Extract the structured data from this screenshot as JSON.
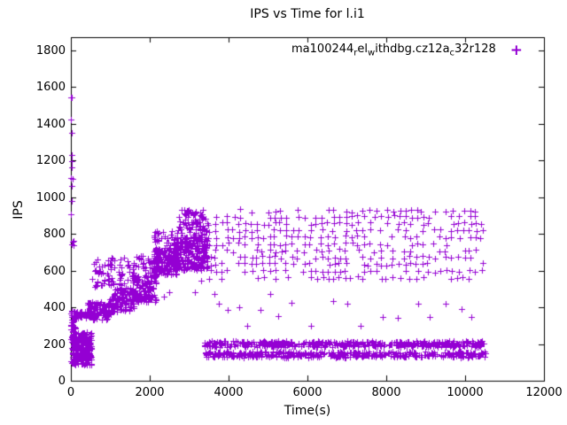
{
  "title": "IPS vs Time for l.i1",
  "legend": {
    "marker": "+",
    "label_plain": "ma100244_rel_withdbg.cz12a_c32r128",
    "segments": [
      {
        "text": "ma100244",
        "sub": false
      },
      {
        "text": "r",
        "sub": true
      },
      {
        "text": "el",
        "sub": false
      },
      {
        "text": "w",
        "sub": true
      },
      {
        "text": "ithdbg.cz12a",
        "sub": false
      },
      {
        "text": "c",
        "sub": true
      },
      {
        "text": "32r128",
        "sub": false
      }
    ]
  },
  "chart_data": {
    "type": "scatter",
    "title": "IPS vs Time for l.i1",
    "xlabel": "Time(s)",
    "ylabel": "IPS",
    "xlim": [
      0,
      12000
    ],
    "ylim": [
      0,
      1870
    ],
    "xticks": [
      0,
      2000,
      4000,
      6000,
      8000,
      10000,
      12000
    ],
    "yticks": [
      0,
      200,
      400,
      600,
      800,
      1000,
      1200,
      1400,
      1600,
      1800
    ],
    "grid": false,
    "legend_position": "top-right-inside",
    "marker": "+",
    "marker_color": "#9400D3",
    "marker_size": 7,
    "prng_seed": 42,
    "series": [
      {
        "name": "ma100244_rel_withdbg.cz12a_c32r128",
        "points_explicit": [
          [
            8,
            1540
          ],
          [
            20,
            1540
          ],
          [
            6,
            1420
          ],
          [
            26,
            1350
          ],
          [
            12,
            1230
          ],
          [
            32,
            1195
          ],
          [
            18,
            1160
          ],
          [
            10,
            1105
          ],
          [
            42,
            1100
          ],
          [
            24,
            1060
          ],
          [
            15,
            980
          ],
          [
            9,
            905
          ],
          [
            22,
            742
          ],
          [
            40,
            756
          ],
          [
            58,
            760
          ],
          [
            72,
            736
          ],
          [
            2350,
            458
          ],
          [
            2500,
            480
          ],
          [
            3150,
            480
          ],
          [
            3300,
            545
          ],
          [
            3650,
            470
          ],
          [
            3760,
            420
          ],
          [
            3980,
            385
          ],
          [
            4280,
            400
          ],
          [
            4480,
            300
          ],
          [
            4800,
            385
          ],
          [
            5050,
            470
          ],
          [
            5250,
            350
          ],
          [
            5600,
            425
          ],
          [
            6100,
            300
          ],
          [
            6650,
            435
          ],
          [
            7000,
            420
          ],
          [
            7350,
            300
          ],
          [
            7900,
            345
          ],
          [
            8300,
            340
          ],
          [
            8800,
            420
          ],
          [
            9100,
            345
          ],
          [
            9500,
            420
          ],
          [
            9900,
            390
          ],
          [
            10150,
            345
          ]
        ],
        "clusters": [
          {
            "x0": 0,
            "x1": 130,
            "y0": 90,
            "y1": 380,
            "n": 70
          },
          {
            "x0": 40,
            "x1": 520,
            "y0": 85,
            "y1": 265,
            "n": 260
          },
          {
            "x0": 0,
            "x1": 680,
            "y0": 340,
            "y1": 378,
            "n": 55
          },
          {
            "x0": 430,
            "x1": 1020,
            "y0": 330,
            "y1": 430,
            "n": 100
          },
          {
            "x0": 520,
            "x1": 1020,
            "y0": 510,
            "y1": 660,
            "n": 35
          },
          {
            "x0": 980,
            "x1": 1620,
            "y0": 375,
            "y1": 505,
            "n": 120
          },
          {
            "x0": 980,
            "x1": 1620,
            "y0": 515,
            "y1": 670,
            "n": 40
          },
          {
            "x0": 1580,
            "x1": 2160,
            "y0": 425,
            "y1": 575,
            "n": 140
          },
          {
            "x0": 1580,
            "x1": 2160,
            "y0": 585,
            "y1": 685,
            "n": 35
          },
          {
            "x0": 2100,
            "x1": 2680,
            "y0": 575,
            "y1": 725,
            "n": 160
          },
          {
            "x0": 2100,
            "x1": 2680,
            "y0": 735,
            "y1": 815,
            "n": 30
          },
          {
            "x0": 2620,
            "x1": 3460,
            "y0": 600,
            "y1": 785,
            "n": 280
          },
          {
            "x0": 2700,
            "x1": 3460,
            "y0": 795,
            "y1": 935,
            "n": 85
          },
          {
            "x0": 3350,
            "x1": 10520,
            "y0": 126,
            "y1": 158,
            "n": 430
          },
          {
            "x0": 3350,
            "x1": 10520,
            "y0": 184,
            "y1": 216,
            "n": 430
          }
        ],
        "burst_columns": {
          "x_start": 3520,
          "x_end": 10480,
          "x_step": 150,
          "x_jitter": 35,
          "y_values": [
            560,
            597,
            634,
            671,
            708,
            745,
            782,
            819,
            856,
            893,
            925
          ],
          "dropout": 0.35
        }
      }
    ]
  }
}
